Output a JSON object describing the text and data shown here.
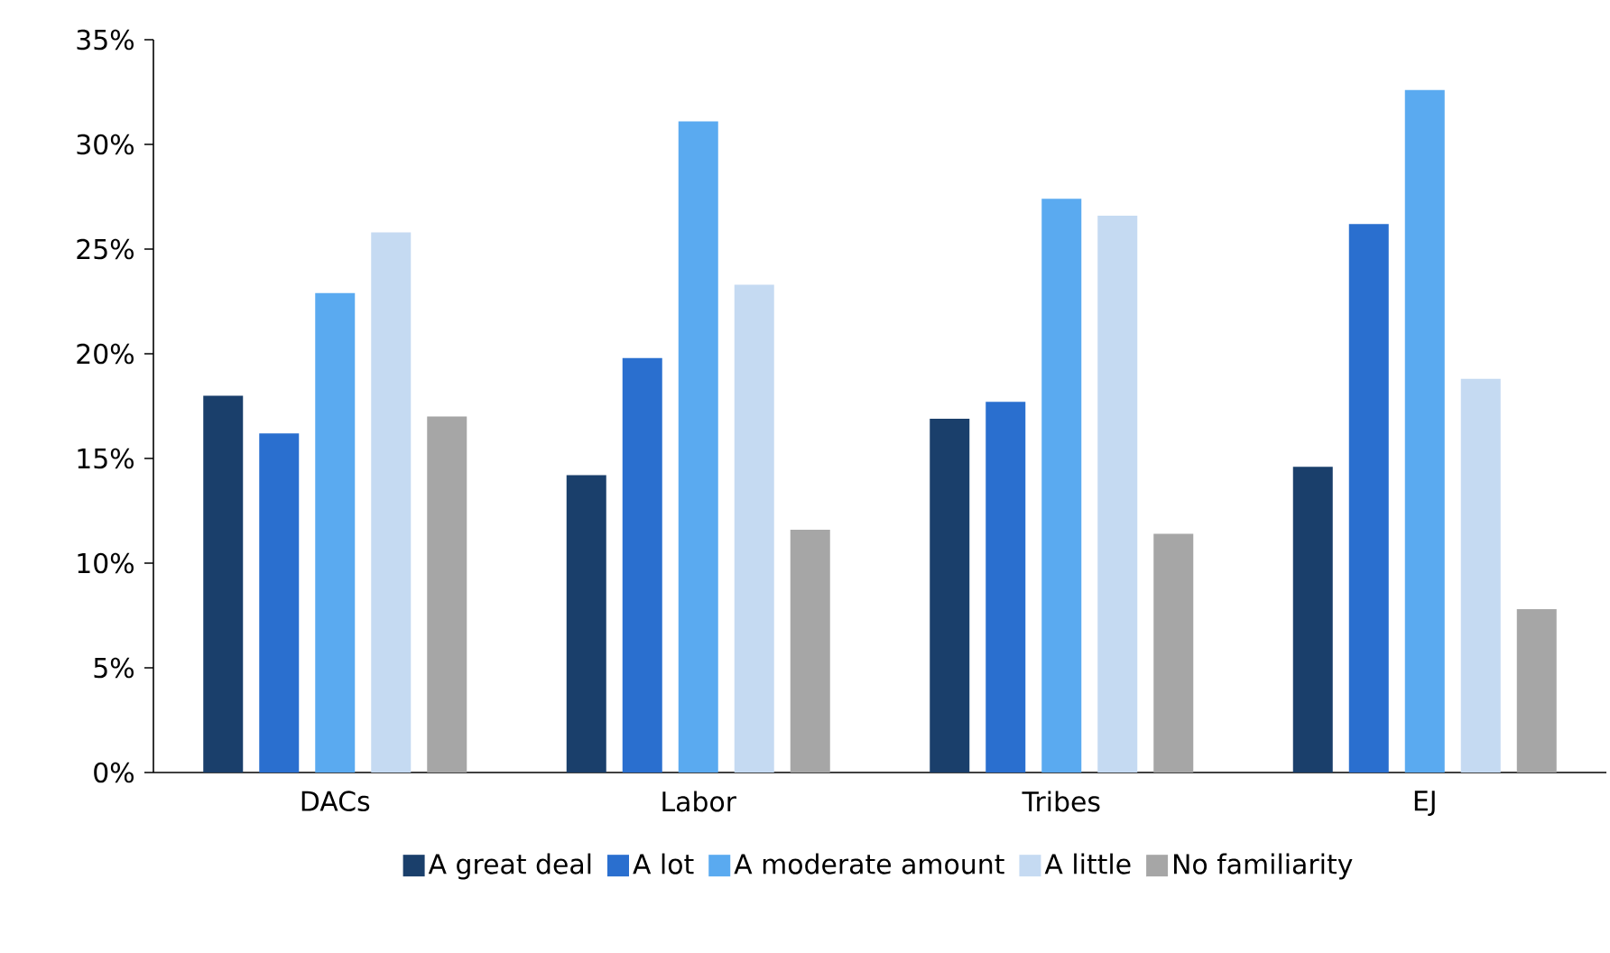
{
  "chart_data": {
    "type": "bar",
    "categories": [
      "DACs",
      "Labor",
      "Tribes",
      "EJ"
    ],
    "series": [
      {
        "name": "A great deal",
        "color": "#1a3f6b",
        "values": [
          18.0,
          14.2,
          16.9,
          14.6
        ]
      },
      {
        "name": "A lot",
        "color": "#2a6fcf",
        "values": [
          16.2,
          19.8,
          17.7,
          26.2
        ]
      },
      {
        "name": "A moderate amount",
        "color": "#5aaaf0",
        "values": [
          22.9,
          31.1,
          27.4,
          32.6
        ]
      },
      {
        "name": "A little",
        "color": "#c5daf2",
        "values": [
          25.8,
          23.3,
          26.6,
          18.8
        ]
      },
      {
        "name": "No familiarity",
        "color": "#a6a6a6",
        "values": [
          17.0,
          11.6,
          11.4,
          7.8
        ]
      }
    ],
    "ylim": [
      0,
      35
    ],
    "yticks": [
      {
        "value": 0,
        "label": "0%"
      },
      {
        "value": 5,
        "label": "5%"
      },
      {
        "value": 10,
        "label": "10%"
      },
      {
        "value": 15,
        "label": "15%"
      },
      {
        "value": 20,
        "label": "20%"
      },
      {
        "value": 25,
        "label": "25%"
      },
      {
        "value": 30,
        "label": "30%"
      },
      {
        "value": 35,
        "label": "35%"
      }
    ],
    "grid": false,
    "legend": "bottom"
  }
}
